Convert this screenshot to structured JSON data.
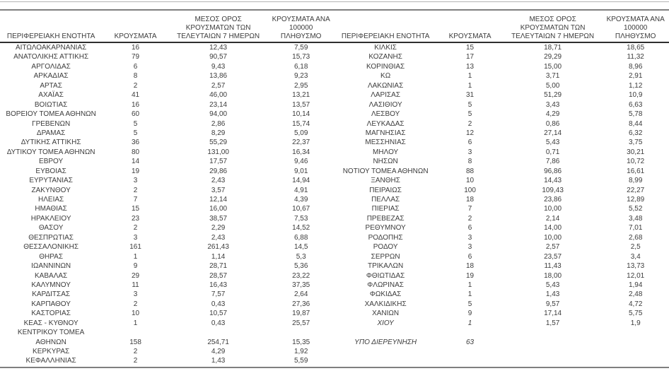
{
  "report": {
    "headers": {
      "region": "ΠΕΡΙΦΕΡΕΙΑΚΗ ΕΝΟΤΗΤΑ",
      "cases": "ΚΡΟΥΣΜΑΤΑ",
      "avg7": "ΜΕΣΟΣ ΟΡΟΣ\nΚΡΟΥΣΜΑΤΩΝ ΤΩΝ\nΤΕΛΕΥΤΑΙΩΝ 7 ΗΜΕΡΩΝ",
      "per100k": "ΚΡΟΥΣΜΑΤΑ ΑΝΑ\n100000 ΠΛΗΘΥΣΜΟ"
    },
    "left_rows": [
      {
        "region": "ΑΙΤΩΛΟΑΚΑΡΝΑΝΙΑΣ",
        "cases": "16",
        "avg7": "12,43",
        "per100k": "7,59"
      },
      {
        "region": "ΑΝΑΤΟΛΙΚΗΣ ΑΤΤΙΚΗΣ",
        "cases": "79",
        "avg7": "90,57",
        "per100k": "15,73"
      },
      {
        "region": "ΑΡΓΟΛΙΔΑΣ",
        "cases": "6",
        "avg7": "9,43",
        "per100k": "6,18"
      },
      {
        "region": "ΑΡΚΑΔΙΑΣ",
        "cases": "8",
        "avg7": "13,86",
        "per100k": "9,23"
      },
      {
        "region": "ΑΡΤΑΣ",
        "cases": "2",
        "avg7": "2,57",
        "per100k": "2,95"
      },
      {
        "region": "ΑΧΑΪΑΣ",
        "cases": "41",
        "avg7": "46,00",
        "per100k": "13,21"
      },
      {
        "region": "ΒΟΙΩΤΙΑΣ",
        "cases": "16",
        "avg7": "23,14",
        "per100k": "13,57"
      },
      {
        "region": "ΒΟΡΕΙΟΥ ΤΟΜΕΑ ΑΘΗΝΩΝ",
        "cases": "60",
        "avg7": "94,00",
        "per100k": "10,14"
      },
      {
        "region": "ΓΡΕΒΕΝΩΝ",
        "cases": "5",
        "avg7": "2,86",
        "per100k": "15,74"
      },
      {
        "region": "ΔΡΑΜΑΣ",
        "cases": "5",
        "avg7": "8,29",
        "per100k": "5,09"
      },
      {
        "region": "ΔΥΤΙΚΗΣ ΑΤΤΙΚΗΣ",
        "cases": "36",
        "avg7": "55,29",
        "per100k": "22,37"
      },
      {
        "region": "ΔΥΤΙΚΟΥ ΤΟΜΕΑ ΑΘΗΝΩΝ",
        "cases": "80",
        "avg7": "131,00",
        "per100k": "16,34"
      },
      {
        "region": "ΕΒΡΟΥ",
        "cases": "14",
        "avg7": "17,57",
        "per100k": "9,46"
      },
      {
        "region": "ΕΥΒΟΙΑΣ",
        "cases": "19",
        "avg7": "29,86",
        "per100k": "9,01"
      },
      {
        "region": "ΕΥΡΥΤΑΝΙΑΣ",
        "cases": "3",
        "avg7": "2,43",
        "per100k": "14,94"
      },
      {
        "region": "ΖΑΚΥΝΘΟΥ",
        "cases": "2",
        "avg7": "3,57",
        "per100k": "4,91"
      },
      {
        "region": "ΗΛΕΙΑΣ",
        "cases": "7",
        "avg7": "12,14",
        "per100k": "4,39"
      },
      {
        "region": "ΗΜΑΘΙΑΣ",
        "cases": "15",
        "avg7": "16,00",
        "per100k": "10,67"
      },
      {
        "region": "ΗΡΑΚΛΕΙΟΥ",
        "cases": "23",
        "avg7": "38,57",
        "per100k": "7,53"
      },
      {
        "region": "ΘΑΣΟΥ",
        "cases": "2",
        "avg7": "2,29",
        "per100k": "14,52"
      },
      {
        "region": "ΘΕΣΠΡΩΤΙΑΣ",
        "cases": "3",
        "avg7": "2,43",
        "per100k": "6,88"
      },
      {
        "region": "ΘΕΣΣΑΛΟΝΙΚΗΣ",
        "cases": "161",
        "avg7": "261,43",
        "per100k": "14,5"
      },
      {
        "region": "ΘΗΡΑΣ",
        "cases": "1",
        "avg7": "1,14",
        "per100k": "5,3"
      },
      {
        "region": "ΙΩΑΝΝΙΝΩΝ",
        "cases": "9",
        "avg7": "28,71",
        "per100k": "5,36"
      },
      {
        "region": "ΚΑΒΑΛΑΣ",
        "cases": "29",
        "avg7": "28,57",
        "per100k": "23,22"
      },
      {
        "region": "ΚΑΛΥΜΝΟΥ",
        "cases": "11",
        "avg7": "16,43",
        "per100k": "37,35"
      },
      {
        "region": "ΚΑΡΔΙΤΣΑΣ",
        "cases": "3",
        "avg7": "7,57",
        "per100k": "2,64"
      },
      {
        "region": "ΚΑΡΠΑΘΟΥ",
        "cases": "2",
        "avg7": "0,43",
        "per100k": "27,36"
      },
      {
        "region": "ΚΑΣΤΟΡΙΑΣ",
        "cases": "10",
        "avg7": "10,57",
        "per100k": "19,87"
      },
      {
        "region": "ΚΕΑΣ - ΚΥΘΝΟΥ",
        "cases": "1",
        "avg7": "0,43",
        "per100k": "25,57"
      },
      {
        "region": "ΚΕΝΤΡΙΚΟΥ ΤΟΜΕΑ\nΑΘΗΝΩΝ",
        "cases": "158",
        "avg7": "254,71",
        "per100k": "15,35"
      },
      {
        "region": "ΚΕΡΚΥΡΑΣ",
        "cases": "2",
        "avg7": "4,29",
        "per100k": "1,92"
      },
      {
        "region": "ΚΕΦΑΛΛΗΝΙΑΣ",
        "cases": "2",
        "avg7": "1,43",
        "per100k": "5,59"
      }
    ],
    "right_rows": [
      {
        "region": "ΚΙΛΚΙΣ",
        "cases": "15",
        "avg7": "18,71",
        "per100k": "18,65"
      },
      {
        "region": "ΚΟΖΑΝΗΣ",
        "cases": "17",
        "avg7": "29,29",
        "per100k": "11,32"
      },
      {
        "region": "ΚΟΡΙΝΘΙΑΣ",
        "cases": "13",
        "avg7": "15,00",
        "per100k": "8,96"
      },
      {
        "region": "ΚΩ",
        "cases": "1",
        "avg7": "3,71",
        "per100k": "2,91"
      },
      {
        "region": "ΛΑΚΩΝΙΑΣ",
        "cases": "1",
        "avg7": "5,00",
        "per100k": "1,12"
      },
      {
        "region": "ΛΑΡΙΣΑΣ",
        "cases": "31",
        "avg7": "51,29",
        "per100k": "10,9"
      },
      {
        "region": "ΛΑΣΙΘΙΟΥ",
        "cases": "5",
        "avg7": "3,43",
        "per100k": "6,63"
      },
      {
        "region": "ΛΕΣΒΟΥ",
        "cases": "5",
        "avg7": "4,29",
        "per100k": "5,78"
      },
      {
        "region": "ΛΕΥΚΑΔΑΣ",
        "cases": "2",
        "avg7": "0,86",
        "per100k": "8,44"
      },
      {
        "region": "ΜΑΓΝΗΣΙΑΣ",
        "cases": "12",
        "avg7": "27,14",
        "per100k": "6,32"
      },
      {
        "region": "ΜΕΣΣΗΝΙΑΣ",
        "cases": "6",
        "avg7": "5,43",
        "per100k": "3,75"
      },
      {
        "region": "ΜΗΛΟΥ",
        "cases": "3",
        "avg7": "0,71",
        "per100k": "30,21"
      },
      {
        "region": "ΝΗΣΩΝ",
        "cases": "8",
        "avg7": "7,86",
        "per100k": "10,72"
      },
      {
        "region": "ΝΟΤΙΟΥ ΤΟΜΕΑ ΑΘΗΝΩΝ",
        "cases": "88",
        "avg7": "96,86",
        "per100k": "16,61"
      },
      {
        "region": "ΞΑΝΘΗΣ",
        "cases": "10",
        "avg7": "14,43",
        "per100k": "8,99"
      },
      {
        "region": "ΠΕΙΡΑΙΩΣ",
        "cases": "100",
        "avg7": "109,43",
        "per100k": "22,27"
      },
      {
        "region": "ΠΕΛΛΑΣ",
        "cases": "18",
        "avg7": "23,86",
        "per100k": "12,89"
      },
      {
        "region": "ΠΙΕΡΙΑΣ",
        "cases": "7",
        "avg7": "10,00",
        "per100k": "5,52"
      },
      {
        "region": "ΠΡΕΒΕΖΑΣ",
        "cases": "2",
        "avg7": "2,14",
        "per100k": "3,48"
      },
      {
        "region": "ΡΕΘΥΜΝΟΥ",
        "cases": "6",
        "avg7": "14,00",
        "per100k": "7,01"
      },
      {
        "region": "ΡΟΔΟΠΗΣ",
        "cases": "3",
        "avg7": "10,00",
        "per100k": "2,68"
      },
      {
        "region": "ΡΟΔΟΥ",
        "cases": "3",
        "avg7": "2,57",
        "per100k": "2,5"
      },
      {
        "region": "ΣΕΡΡΩΝ",
        "cases": "6",
        "avg7": "23,57",
        "per100k": "3,4"
      },
      {
        "region": "ΤΡΙΚΑΛΩΝ",
        "cases": "18",
        "avg7": "11,43",
        "per100k": "13,73"
      },
      {
        "region": "ΦΘΙΩΤΙΔΑΣ",
        "cases": "19",
        "avg7": "18,00",
        "per100k": "12,01"
      },
      {
        "region": "ΦΛΩΡΙΝΑΣ",
        "cases": "1",
        "avg7": "5,43",
        "per100k": "1,94"
      },
      {
        "region": "ΦΩΚΙΔΑΣ",
        "cases": "1",
        "avg7": "1,43",
        "per100k": "2,48"
      },
      {
        "region": "ΧΑΛΚΙΔΙΚΗΣ",
        "cases": "5",
        "avg7": "9,57",
        "per100k": "4,72"
      },
      {
        "region": "ΧΑΝΙΩΝ",
        "cases": "9",
        "avg7": "17,14",
        "per100k": "5,75"
      },
      {
        "region": "ΧΙΟΥ",
        "cases": "1",
        "avg7": "1,57",
        "per100k": "1,9",
        "italic_cols": [
          0,
          1
        ]
      },
      {
        "region": "",
        "cases": "",
        "avg7": "",
        "per100k": ""
      },
      {
        "region": "ΥΠΟ ΔΙΕΡΕΥΝΗΣΗ",
        "cases": "63",
        "avg7": "",
        "per100k": "",
        "italic_cols": [
          0,
          1
        ]
      }
    ],
    "colors": {
      "text": "#3c3c3c",
      "rule_light": "#b3b3b3",
      "rule_medium": "#7f7f7f",
      "rule_dark": "#2f2f2f"
    }
  }
}
